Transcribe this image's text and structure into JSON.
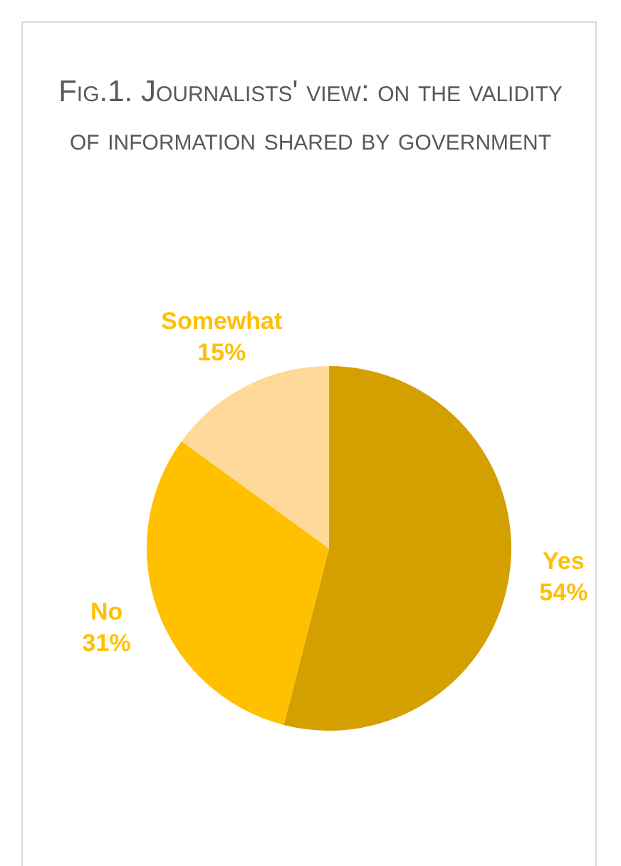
{
  "chart_data": {
    "type": "pie",
    "title": "Fig.1. Journalists' view: on the validity of information shared by government",
    "categories": [
      "Yes",
      "No",
      "Somewhat"
    ],
    "values": [
      54,
      31,
      15
    ],
    "value_labels": [
      "54%",
      "31%",
      "15%"
    ],
    "colors": [
      "#d4a000",
      "#ffc000",
      "#ffd99a"
    ],
    "legend": false
  }
}
